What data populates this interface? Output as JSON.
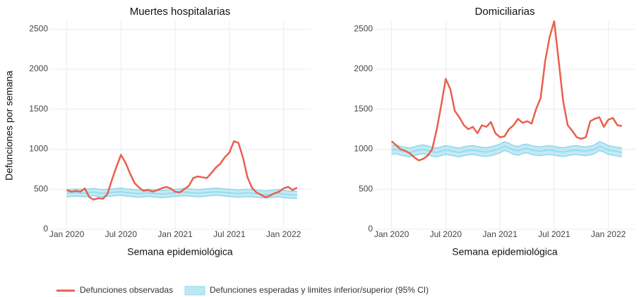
{
  "chart_data": [
    {
      "type": "line",
      "title": "Muertes hospitalarias",
      "y_label": "Defunciones por semana",
      "x_label": "Semana epidemiológica",
      "grid": true,
      "x": [
        2020,
        2020.042,
        2020.083,
        2020.125,
        2020.167,
        2020.208,
        2020.25,
        2020.292,
        2020.333,
        2020.375,
        2020.417,
        2020.458,
        2020.5,
        2020.542,
        2020.583,
        2020.625,
        2020.667,
        2020.708,
        2020.75,
        2020.792,
        2020.833,
        2020.875,
        2020.917,
        2020.958,
        2021,
        2021.042,
        2021.083,
        2021.125,
        2021.167,
        2021.208,
        2021.25,
        2021.292,
        2021.333,
        2021.375,
        2021.417,
        2021.458,
        2021.5,
        2021.542,
        2021.583,
        2021.625,
        2021.667,
        2021.708,
        2021.75,
        2021.792,
        2021.833,
        2021.875,
        2021.917,
        2021.958,
        2022,
        2022.042,
        2022.083,
        2022.125
      ],
      "xlim": [
        2019.84,
        2022.25
      ],
      "xticks": [
        {
          "value": 2020,
          "label": "Jan 2020"
        },
        {
          "value": 2020.5,
          "label": "Jul 2020"
        },
        {
          "value": 2021,
          "label": "Jan 2021"
        },
        {
          "value": 2021.5,
          "label": "Jul 2021"
        },
        {
          "value": 2022,
          "label": "Jan 2022"
        }
      ],
      "ylim": [
        0,
        2600
      ],
      "yticks": [
        0,
        500,
        1000,
        1500,
        2000,
        2500
      ],
      "series": [
        {
          "name": "Defunciones observadas",
          "color": "#e8604c",
          "values": [
            490,
            470,
            480,
            470,
            510,
            400,
            370,
            390,
            380,
            440,
            620,
            780,
            930,
            830,
            700,
            580,
            520,
            480,
            490,
            470,
            490,
            510,
            530,
            510,
            470,
            460,
            500,
            540,
            640,
            660,
            650,
            640,
            700,
            770,
            820,
            900,
            960,
            1100,
            1080,
            900,
            650,
            520,
            460,
            430,
            400,
            420,
            450,
            470,
            510,
            530,
            490,
            520
          ]
        },
        {
          "name": "Defunciones esperadas y limites inferior/superior (95% CI)",
          "color": "#8fd8ec",
          "values": [
            450,
            455,
            460,
            455,
            450,
            460,
            465,
            455,
            450,
            455,
            460,
            465,
            470,
            460,
            455,
            450,
            445,
            450,
            455,
            450,
            445,
            440,
            445,
            450,
            455,
            460,
            465,
            460,
            455,
            450,
            455,
            460,
            465,
            470,
            465,
            460,
            455,
            450,
            445,
            450,
            455,
            450,
            445,
            440,
            435,
            440,
            445,
            450,
            440,
            435,
            430,
            430
          ],
          "lower": [
            405,
            410,
            415,
            410,
            405,
            415,
            420,
            410,
            405,
            410,
            415,
            420,
            425,
            415,
            410,
            405,
            400,
            405,
            410,
            405,
            400,
            395,
            400,
            405,
            410,
            415,
            420,
            415,
            410,
            405,
            410,
            415,
            420,
            425,
            420,
            415,
            410,
            405,
            400,
            405,
            410,
            405,
            400,
            395,
            390,
            395,
            400,
            405,
            395,
            390,
            385,
            385
          ],
          "upper": [
            495,
            500,
            505,
            500,
            495,
            505,
            510,
            500,
            495,
            500,
            505,
            510,
            515,
            505,
            500,
            495,
            490,
            495,
            500,
            495,
            490,
            485,
            490,
            495,
            500,
            505,
            510,
            505,
            500,
            495,
            500,
            505,
            510,
            515,
            510,
            505,
            500,
            495,
            490,
            495,
            500,
            495,
            490,
            485,
            480,
            485,
            490,
            495,
            485,
            480,
            475,
            475
          ]
        }
      ]
    },
    {
      "type": "line",
      "title": "Domiciliarias",
      "x_label": "Semana epidemiológica",
      "grid": true,
      "x": [
        2020,
        2020.042,
        2020.083,
        2020.125,
        2020.167,
        2020.208,
        2020.25,
        2020.292,
        2020.333,
        2020.375,
        2020.417,
        2020.458,
        2020.5,
        2020.542,
        2020.583,
        2020.625,
        2020.667,
        2020.708,
        2020.75,
        2020.792,
        2020.833,
        2020.875,
        2020.917,
        2020.958,
        2021,
        2021.042,
        2021.083,
        2021.125,
        2021.167,
        2021.208,
        2021.25,
        2021.292,
        2021.333,
        2021.375,
        2021.417,
        2021.458,
        2021.5,
        2021.542,
        2021.583,
        2021.625,
        2021.667,
        2021.708,
        2021.75,
        2021.792,
        2021.833,
        2021.875,
        2021.917,
        2021.958,
        2022,
        2022.042,
        2022.083,
        2022.125
      ],
      "xlim": [
        2019.84,
        2022.25
      ],
      "xticks": [
        {
          "value": 2020,
          "label": "Jan 2020"
        },
        {
          "value": 2020.5,
          "label": "Jul 2020"
        },
        {
          "value": 2021,
          "label": "Jan 2021"
        },
        {
          "value": 2021.5,
          "label": "Jul 2021"
        },
        {
          "value": 2022,
          "label": "Jan 2022"
        }
      ],
      "ylim": [
        0,
        2600
      ],
      "yticks": [
        0,
        500,
        1000,
        1500,
        2000,
        2500
      ],
      "series": [
        {
          "color": "#e8604c",
          "values": [
            1100,
            1050,
            1000,
            980,
            950,
            900,
            860,
            880,
            920,
            1000,
            1250,
            1550,
            1880,
            1750,
            1480,
            1400,
            1300,
            1250,
            1280,
            1200,
            1300,
            1280,
            1340,
            1200,
            1150,
            1160,
            1250,
            1300,
            1380,
            1330,
            1350,
            1320,
            1500,
            1640,
            2100,
            2400,
            2600,
            2100,
            1600,
            1300,
            1230,
            1150,
            1130,
            1150,
            1350,
            1380,
            1400,
            1280,
            1370,
            1390,
            1300,
            1290
          ]
        },
        {
          "color": "#8fd8ec",
          "values": [
            990,
            1000,
            980,
            970,
            960,
            975,
            990,
            1000,
            985,
            970,
            960,
            975,
            990,
            980,
            970,
            960,
            975,
            985,
            990,
            980,
            970,
            965,
            975,
            990,
            1010,
            1040,
            1020,
            990,
            980,
            1000,
            1010,
            990,
            980,
            975,
            985,
            990,
            980,
            970,
            965,
            975,
            985,
            990,
            980,
            975,
            985,
            1000,
            1040,
            1020,
            990,
            980,
            970,
            960
          ],
          "lower": [
            935,
            945,
            925,
            915,
            905,
            920,
            935,
            945,
            930,
            915,
            905,
            920,
            935,
            925,
            915,
            905,
            920,
            930,
            935,
            925,
            915,
            910,
            920,
            935,
            955,
            985,
            965,
            935,
            925,
            945,
            955,
            935,
            925,
            920,
            930,
            935,
            925,
            915,
            910,
            920,
            930,
            935,
            925,
            920,
            930,
            945,
            985,
            965,
            935,
            925,
            915,
            905
          ],
          "upper": [
            1045,
            1055,
            1035,
            1025,
            1015,
            1030,
            1045,
            1055,
            1040,
            1025,
            1015,
            1030,
            1045,
            1035,
            1025,
            1015,
            1030,
            1040,
            1045,
            1035,
            1025,
            1020,
            1030,
            1045,
            1065,
            1095,
            1075,
            1045,
            1035,
            1055,
            1065,
            1045,
            1035,
            1030,
            1040,
            1045,
            1035,
            1025,
            1020,
            1030,
            1040,
            1045,
            1035,
            1030,
            1040,
            1055,
            1095,
            1075,
            1045,
            1035,
            1025,
            1015
          ]
        }
      ]
    }
  ]
}
